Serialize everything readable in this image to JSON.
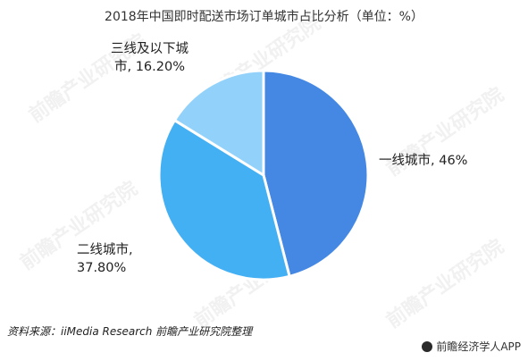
{
  "chart_data": {
    "type": "pie",
    "title": "2018年中国即时配送市场订单城市占比分析（单位：%）",
    "slices": [
      {
        "label": "一线城市",
        "value": 46,
        "value_text": "46%",
        "color": "#4488E4"
      },
      {
        "label": "二线城市",
        "value": 37.8,
        "value_text": "37.80%",
        "color": "#44B0F4"
      },
      {
        "label": "三线及以下城市",
        "value": 16.2,
        "value_text": "16.20%",
        "color": "#92D2FA"
      }
    ],
    "start_angle_deg": 0,
    "direction": "clockwise"
  },
  "labels": {
    "tier1": "一线城市, 46%",
    "tier2_line1": "二线城市,",
    "tier2_line2": "37.80%",
    "tier3_line1": "三线及以下城",
    "tier3_line2": "市, 16.20%"
  },
  "source": "资料来源：iiMedia Research 前瞻产业研究院整理",
  "brand": {
    "name": "前瞻经济学人APP",
    "logo_icon": "qianzhan-logo-icon"
  },
  "watermark": "前瞻产业研究院"
}
